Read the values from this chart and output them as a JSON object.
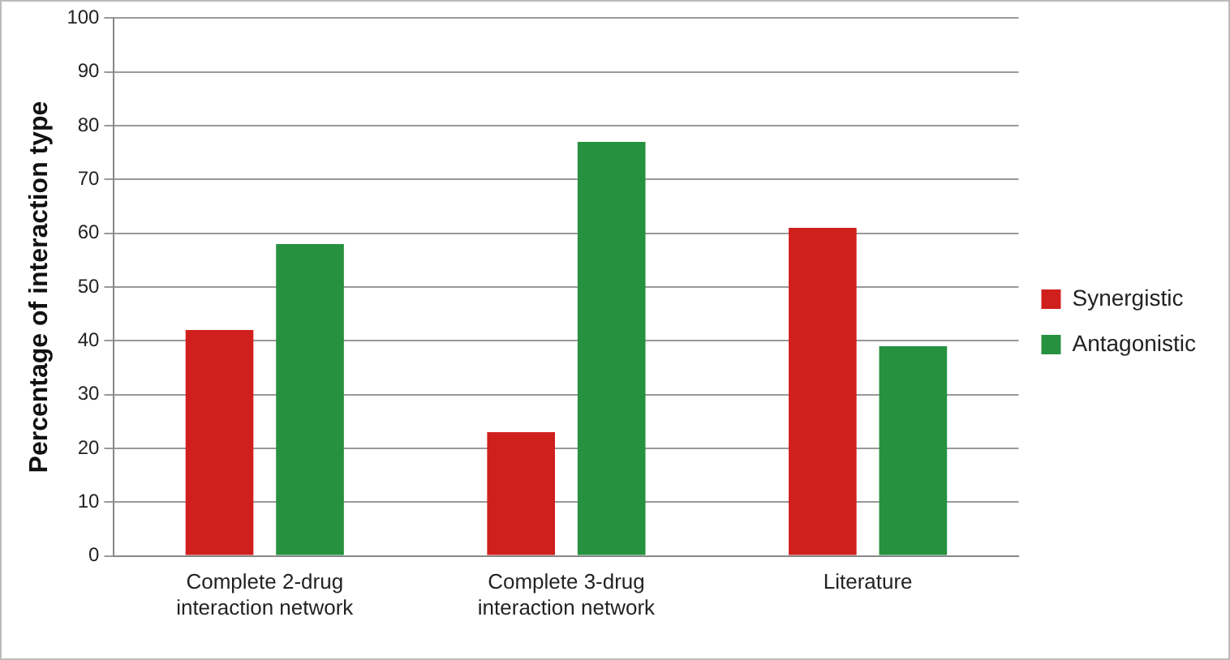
{
  "chart_data": {
    "type": "bar",
    "ylabel": "Percentage of interaction type",
    "categories": [
      [
        "Complete 2-drug",
        "interaction network"
      ],
      [
        "Complete 3-drug",
        "interaction network"
      ],
      "Literature"
    ],
    "series": [
      {
        "name": "Synergistic",
        "color": "#d0201e",
        "values": [
          42,
          23,
          61
        ]
      },
      {
        "name": "Antagonistic",
        "color": "#26913f",
        "values": [
          58,
          77,
          39
        ]
      }
    ],
    "ylim": [
      0,
      100
    ],
    "yticks": [
      0,
      10,
      20,
      30,
      40,
      50,
      60,
      70,
      80,
      90,
      100
    ],
    "grid": "y",
    "legend": "right"
  }
}
